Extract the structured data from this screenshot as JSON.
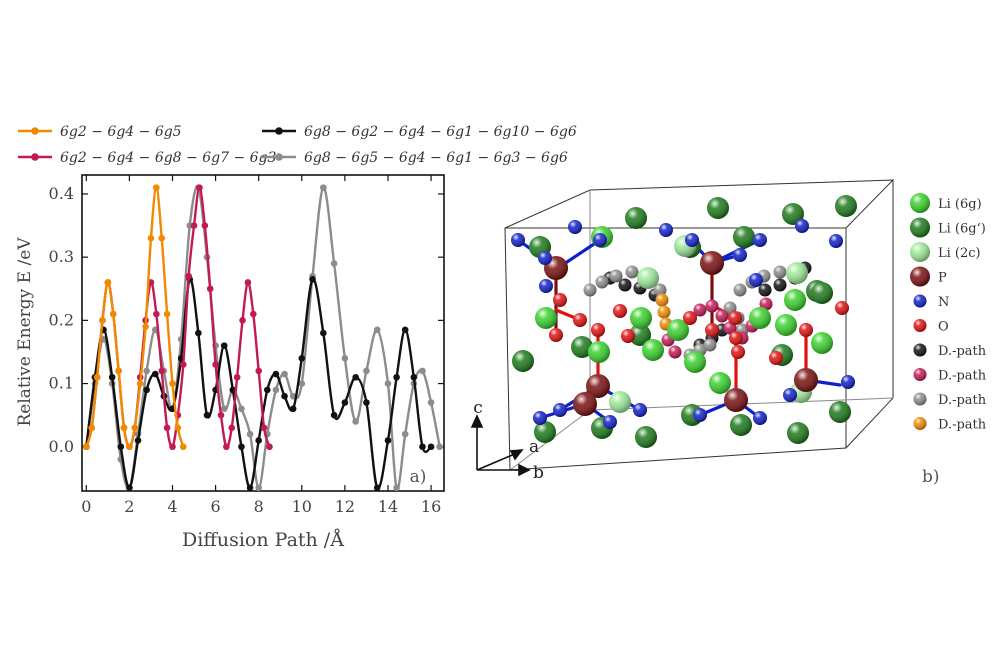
{
  "figure": {
    "panel_a_label": "a)",
    "panel_b_label": "b)",
    "axes_labels": {
      "c": "c",
      "a": "a",
      "b": "b"
    }
  },
  "colors": {
    "orange": "#f08a00",
    "crimson": "#c21a54",
    "black": "#111111",
    "gray": "#8c8c8c",
    "li_6g": "#39d12c",
    "li_6g_prime": "#1d7a1b",
    "li_2c": "#9de89a",
    "P": "#7a1010",
    "N": "#1020c8",
    "O": "#e01010"
  },
  "chart_data": {
    "type": "line",
    "xlabel": "Diffusion Path /Å",
    "ylabel": "Relative Energy E /eV",
    "xlim": [
      -0.2,
      16.6
    ],
    "ylim": [
      -0.07,
      0.43
    ],
    "xticks": [
      0,
      2,
      4,
      6,
      8,
      10,
      12,
      14,
      16
    ],
    "yticks": [
      0.0,
      0.1,
      0.2,
      0.3,
      0.4
    ],
    "ytick_labels": [
      "0.0",
      "0.1",
      "0.2",
      "0.3",
      "0.4"
    ],
    "grid": false,
    "legend_position": "top",
    "series": [
      {
        "name": "6g2 − 6g4 − 6g5",
        "color": "#f08a00",
        "points": [
          [
            0,
            0
          ],
          [
            0.25,
            0.03
          ],
          [
            0.5,
            0.11
          ],
          [
            0.75,
            0.2
          ],
          [
            1.0,
            0.26
          ],
          [
            1.25,
            0.21
          ],
          [
            1.5,
            0.12
          ],
          [
            1.75,
            0.03
          ],
          [
            2.0,
            0
          ],
          [
            2.25,
            0.03
          ],
          [
            2.5,
            0.1
          ],
          [
            2.75,
            0.19
          ],
          [
            3.0,
            0.33
          ],
          [
            3.25,
            0.41
          ],
          [
            3.5,
            0.33
          ],
          [
            3.75,
            0.21
          ],
          [
            4.0,
            0.1
          ],
          [
            4.25,
            0.03
          ],
          [
            4.5,
            0
          ]
        ]
      },
      {
        "name": "6g2 − 6g4 − 6g8 − 6g7 − 6g3",
        "color": "#c21a54",
        "points": [
          [
            0,
            0
          ],
          [
            0.25,
            0.03
          ],
          [
            0.5,
            0.11
          ],
          [
            0.75,
            0.2
          ],
          [
            1.0,
            0.26
          ],
          [
            1.25,
            0.21
          ],
          [
            1.5,
            0.12
          ],
          [
            1.75,
            0.03
          ],
          [
            2.0,
            0
          ],
          [
            2.25,
            0.03
          ],
          [
            2.5,
            0.11
          ],
          [
            2.75,
            0.2
          ],
          [
            3.0,
            0.26
          ],
          [
            3.25,
            0.21
          ],
          [
            3.5,
            0.12
          ],
          [
            3.75,
            0.03
          ],
          [
            4.0,
            0
          ],
          [
            4.25,
            0.05
          ],
          [
            4.5,
            0.13
          ],
          [
            4.75,
            0.27
          ],
          [
            5.0,
            0.35
          ],
          [
            5.25,
            0.41
          ],
          [
            5.5,
            0.35
          ],
          [
            5.75,
            0.25
          ],
          [
            6.0,
            0.13
          ],
          [
            6.25,
            0.05
          ],
          [
            6.5,
            0
          ],
          [
            6.75,
            0.03
          ],
          [
            7.0,
            0.11
          ],
          [
            7.25,
            0.2
          ],
          [
            7.5,
            0.26
          ],
          [
            7.75,
            0.21
          ],
          [
            8.0,
            0.12
          ],
          [
            8.25,
            0.03
          ],
          [
            8.5,
            0
          ]
        ]
      },
      {
        "name": "6g8 − 6g2 − 6g4 − 6g1 − 6g10 − 6g6",
        "color": "#111111",
        "points": [
          [
            0,
            0
          ],
          [
            0.4,
            0.11
          ],
          [
            0.8,
            0.185
          ],
          [
            1.2,
            0.11
          ],
          [
            1.6,
            0
          ],
          [
            2.0,
            -0.065
          ],
          [
            2.4,
            0.01
          ],
          [
            2.8,
            0.09
          ],
          [
            3.2,
            0.115
          ],
          [
            3.6,
            0.08
          ],
          [
            4.0,
            0.06
          ],
          [
            4.4,
            0.14
          ],
          [
            4.8,
            0.265
          ],
          [
            5.2,
            0.18
          ],
          [
            5.6,
            0.05
          ],
          [
            6.0,
            0.09
          ],
          [
            6.4,
            0.16
          ],
          [
            6.8,
            0.09
          ],
          [
            7.2,
            0
          ],
          [
            7.6,
            -0.065
          ],
          [
            8.0,
            0.01
          ],
          [
            8.4,
            0.09
          ],
          [
            8.8,
            0.115
          ],
          [
            9.2,
            0.08
          ],
          [
            9.6,
            0.06
          ],
          [
            10.0,
            0.14
          ],
          [
            10.5,
            0.265
          ],
          [
            11.0,
            0.18
          ],
          [
            11.5,
            0.05
          ],
          [
            12.0,
            0.07
          ],
          [
            12.5,
            0.11
          ],
          [
            13.0,
            0.07
          ],
          [
            13.5,
            -0.065
          ],
          [
            14.0,
            0.01
          ],
          [
            14.4,
            0.11
          ],
          [
            14.8,
            0.185
          ],
          [
            15.2,
            0.11
          ],
          [
            15.6,
            0.0
          ],
          [
            16.0,
            0.0
          ]
        ]
      },
      {
        "name": "6g8 − 6g5 − 6g4 − 6g1 − 6g3 − 6g6",
        "color": "#8c8c8c",
        "points": [
          [
            0,
            0
          ],
          [
            0.4,
            0.1
          ],
          [
            0.8,
            0.17
          ],
          [
            1.2,
            0.1
          ],
          [
            1.6,
            -0.02
          ],
          [
            2.0,
            -0.065
          ],
          [
            2.4,
            0.02
          ],
          [
            2.8,
            0.12
          ],
          [
            3.2,
            0.185
          ],
          [
            3.6,
            0.12
          ],
          [
            4.0,
            0.06
          ],
          [
            4.4,
            0.17
          ],
          [
            4.8,
            0.35
          ],
          [
            5.2,
            0.41
          ],
          [
            5.6,
            0.3
          ],
          [
            6.0,
            0.16
          ],
          [
            6.4,
            0.06
          ],
          [
            6.8,
            0.09
          ],
          [
            7.2,
            0.06
          ],
          [
            7.6,
            0.02
          ],
          [
            8.0,
            -0.065
          ],
          [
            8.4,
            0.02
          ],
          [
            8.8,
            0.09
          ],
          [
            9.2,
            0.115
          ],
          [
            9.6,
            0.08
          ],
          [
            10.0,
            0.1
          ],
          [
            10.5,
            0.27
          ],
          [
            11.0,
            0.41
          ],
          [
            11.5,
            0.29
          ],
          [
            12.0,
            0.14
          ],
          [
            12.5,
            0.04
          ],
          [
            13.0,
            0.12
          ],
          [
            13.5,
            0.185
          ],
          [
            14.0,
            0.1
          ],
          [
            14.4,
            -0.065
          ],
          [
            14.8,
            0.02
          ],
          [
            15.2,
            0.1
          ],
          [
            15.6,
            0.12
          ],
          [
            16.0,
            0.07
          ],
          [
            16.4,
            0.0
          ]
        ]
      }
    ]
  },
  "legend_3d": [
    {
      "label": "Li (6g)",
      "color": "#39d12c"
    },
    {
      "label": "Li (6g‘)",
      "color": "#1d7a1b"
    },
    {
      "label": "Li (2c)",
      "color": "#9de89a"
    },
    {
      "label": "P",
      "color": "#7a1010"
    },
    {
      "label": "N",
      "color": "#1020c8"
    },
    {
      "label": "O",
      "color": "#e01010"
    },
    {
      "label": "D.-path",
      "color": "#111111"
    },
    {
      "label": "D.-path",
      "color": "#c21a54"
    },
    {
      "label": "D.-path",
      "color": "#8c8c8c"
    },
    {
      "label": "D.-path",
      "color": "#f08a00"
    }
  ]
}
